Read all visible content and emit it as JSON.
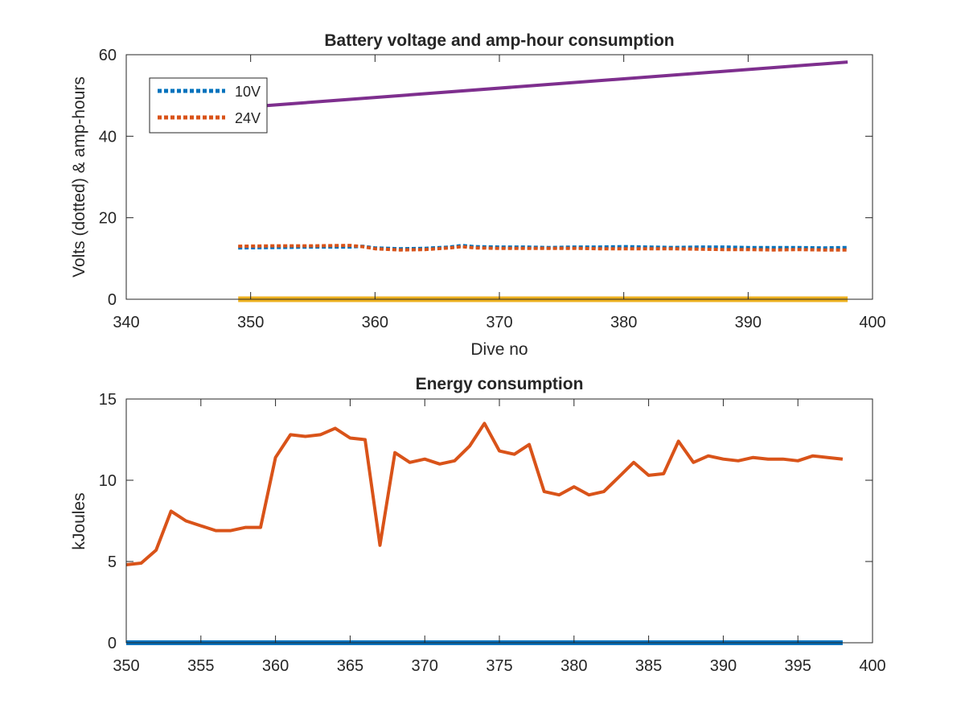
{
  "chart_data": [
    {
      "type": "line",
      "title": "Battery voltage and amp-hour consumption",
      "xlabel": "Dive no",
      "ylabel": "Volts (dotted) & amp-hours",
      "xlim": [
        340,
        400
      ],
      "ylim": [
        0,
        60
      ],
      "xticks": [
        "340",
        "350",
        "360",
        "370",
        "380",
        "390",
        "400"
      ],
      "yticks": [
        "0",
        "20",
        "40",
        "60"
      ],
      "grid": false,
      "legend_position": "top-left",
      "series": [
        {
          "name": "10V",
          "style": "dotted",
          "color": "#0072BD",
          "x": [
            349,
            352,
            355,
            358,
            359,
            360,
            362,
            364,
            366,
            367,
            368,
            370,
            372,
            374,
            376,
            378,
            380,
            382,
            384,
            386,
            388,
            390,
            392,
            394,
            396,
            398
          ],
          "y": [
            12.6,
            12.7,
            12.8,
            12.8,
            13.0,
            12.6,
            12.4,
            12.5,
            12.8,
            13.2,
            12.9,
            12.8,
            12.8,
            12.7,
            12.8,
            12.8,
            12.9,
            12.8,
            12.7,
            12.8,
            12.8,
            12.7,
            12.7,
            12.7,
            12.6,
            12.7
          ]
        },
        {
          "name": "24V",
          "style": "dotted",
          "color": "#D95319",
          "x": [
            349,
            352,
            355,
            358,
            359,
            360,
            362,
            364,
            366,
            367,
            368,
            370,
            372,
            374,
            376,
            378,
            380,
            382,
            384,
            386,
            388,
            390,
            392,
            394,
            396,
            398
          ],
          "y": [
            13.0,
            13.1,
            13.1,
            13.2,
            12.9,
            12.4,
            12.1,
            12.2,
            12.6,
            12.9,
            12.6,
            12.5,
            12.5,
            12.5,
            12.5,
            12.4,
            12.4,
            12.4,
            12.4,
            12.3,
            12.2,
            12.2,
            12.1,
            12.2,
            12.1,
            12.1
          ]
        },
        {
          "style": "solid",
          "color": "#7E2F8E",
          "x": [
            349,
            398
          ],
          "y": [
            47,
            58.2
          ]
        },
        {
          "style": "solid",
          "color": "#EDB120",
          "x": [
            349,
            398
          ],
          "y": [
            0,
            0
          ]
        }
      ]
    },
    {
      "type": "line",
      "title": "Energy consumption",
      "xlabel": "",
      "ylabel": "kJoules",
      "xlim": [
        350,
        400
      ],
      "ylim": [
        0,
        15
      ],
      "xticks": [
        "350",
        "355",
        "360",
        "365",
        "370",
        "375",
        "380",
        "385",
        "390",
        "395",
        "400"
      ],
      "yticks": [
        "0",
        "5",
        "10",
        "15"
      ],
      "grid": false,
      "series": [
        {
          "style": "solid",
          "color": "#D95319",
          "x": [
            350,
            351,
            352,
            353,
            354,
            355,
            356,
            357,
            358,
            359,
            360,
            361,
            362,
            363,
            364,
            365,
            366,
            367,
            368,
            369,
            370,
            371,
            372,
            373,
            374,
            375,
            376,
            377,
            378,
            379,
            380,
            381,
            382,
            383,
            384,
            385,
            386,
            387,
            388,
            389,
            390,
            391,
            392,
            393,
            394,
            395,
            396,
            397,
            398
          ],
          "y": [
            4.8,
            4.9,
            5.7,
            8.1,
            7.5,
            7.2,
            6.9,
            6.9,
            7.1,
            7.1,
            11.4,
            12.8,
            12.7,
            12.8,
            13.2,
            12.6,
            12.5,
            6.0,
            11.7,
            11.1,
            11.3,
            11.0,
            11.2,
            12.1,
            13.5,
            11.8,
            11.6,
            12.2,
            9.3,
            9.1,
            9.6,
            9.1,
            9.3,
            10.2,
            11.1,
            10.3,
            10.4,
            12.4,
            11.1,
            11.5,
            11.3,
            11.2,
            11.4,
            11.3,
            11.3,
            11.2,
            11.5,
            11.4,
            11.3
          ]
        },
        {
          "style": "solid",
          "color": "#0072BD",
          "x": [
            350,
            398
          ],
          "y": [
            0,
            0
          ]
        }
      ]
    }
  ]
}
